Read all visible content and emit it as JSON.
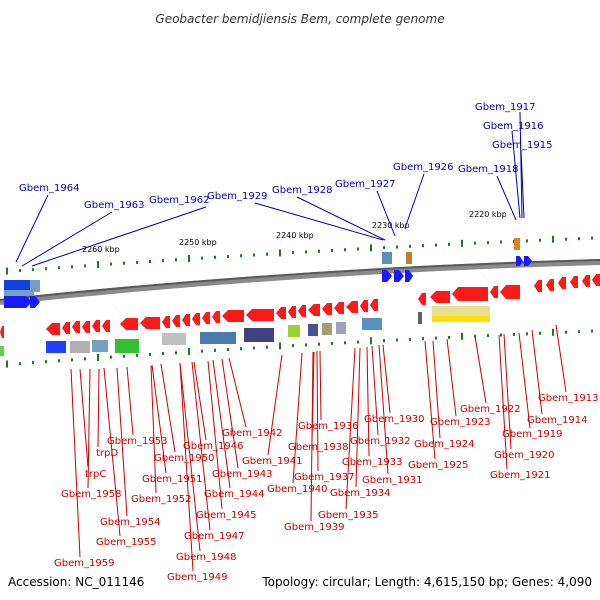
{
  "title": "Geobacter bemidjiensis Bem, complete genome",
  "footer": {
    "accession": "Accession: NC_011146",
    "topology": "Topology: circular; Length: 4,615,150 bp; Genes: 4,090"
  },
  "scale_labels": [
    "2260 kbp",
    "2250 kbp",
    "2240 kbp",
    "2230 kbp",
    "2220 kbp"
  ],
  "top_labels": [
    "Gbem_1917",
    "Gbem_1916",
    "Gbem_1915",
    "Gbem_1918",
    "Gbem_1926",
    "Gbem_1927",
    "Gbem_1928",
    "Gbem_1929",
    "Gbem_1962",
    "Gbem_1963",
    "Gbem_1964"
  ],
  "bottom_labels": [
    "Gbem_1913",
    "Gbem_1914",
    "Gbem_1919",
    "Gbem_1920",
    "Gbem_1921",
    "Gbem_1922",
    "Gbem_1923",
    "Gbem_1924",
    "Gbem_1925",
    "Gbem_1930",
    "Gbem_1931",
    "Gbem_1932",
    "Gbem_1933",
    "Gbem_1934",
    "Gbem_1935",
    "Gbem_1936",
    "Gbem_1937",
    "Gbem_1938",
    "Gbem_1939",
    "Gbem_1940",
    "Gbem_1941",
    "Gbem_1942",
    "Gbem_1943",
    "Gbem_1944",
    "Gbem_1945",
    "Gbem_1946",
    "Gbem_1947",
    "Gbem_1948",
    "Gbem_1949",
    "Gbem_1950",
    "Gbem_1951",
    "Gbem_1952",
    "Gbem_1953",
    "Gbem_1954",
    "Gbem_1955",
    "Gbem_1958",
    "Gbem_1959",
    "trpD",
    "trpC"
  ],
  "colors": {
    "forward_gene": "#1a1aff",
    "reverse_gene": "#ff1a1a",
    "top_label": "#0000b3",
    "bottom_label": "#cc0000",
    "backbone": "#6e6e6e",
    "tick": "#1f7a1f"
  }
}
